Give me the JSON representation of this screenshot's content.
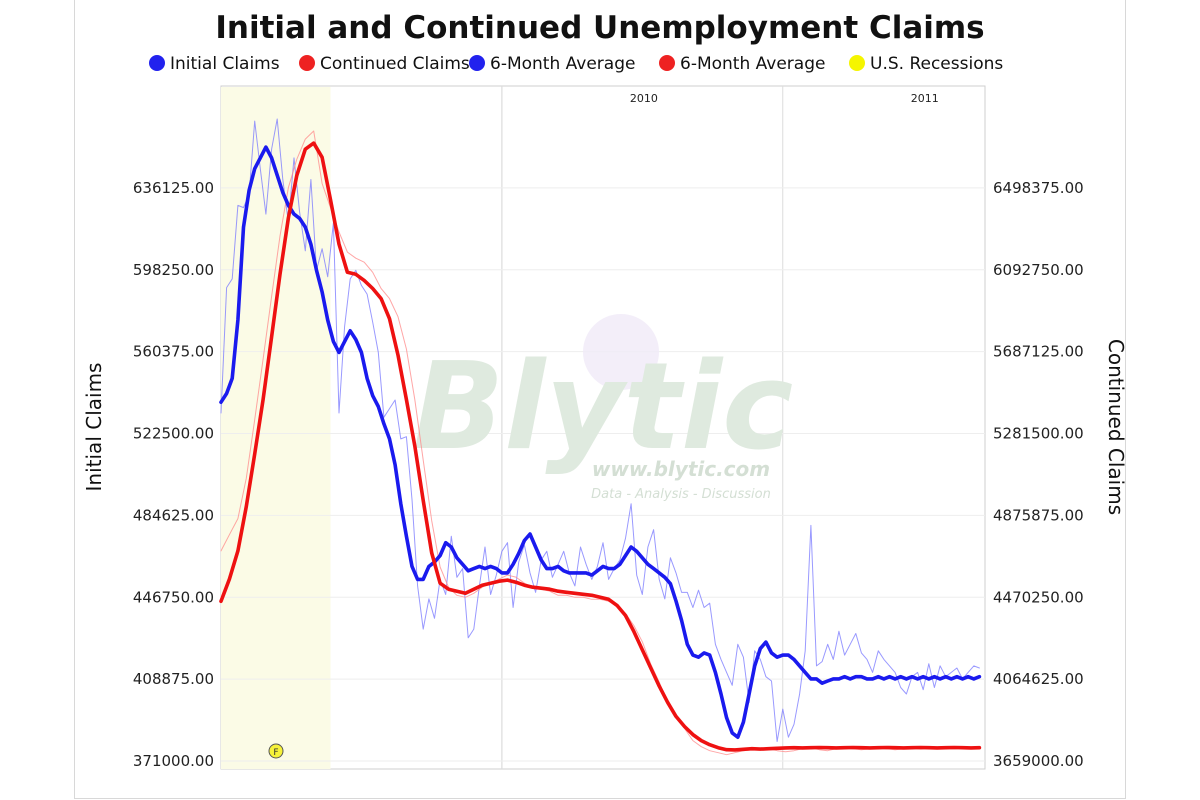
{
  "chart_data": {
    "type": "line",
    "title": "Initial and Continued Unemployment Claims",
    "ylabel_left": "Initial Claims",
    "ylabel_right": "Continued Claims",
    "y_left_ticks": [
      "636125.00",
      "598250.00",
      "560375.00",
      "522500.00",
      "484625.00",
      "446750.00",
      "408875.00",
      "371000.00"
    ],
    "y_right_ticks": [
      "6498375.00",
      "6092750.00",
      "5687125.00",
      "5281500.00",
      "4875875.00",
      "4470250.00",
      "4064625.00",
      "3659000.00"
    ],
    "y_left_range": [
      371000,
      674000
    ],
    "y_right_range": [
      3659000,
      6904000
    ],
    "x_range": [
      2009.0,
      2011.72
    ],
    "year_labels": [
      {
        "label": "2010",
        "x": 2010.0
      },
      {
        "label": "2011",
        "x": 2011.0
      }
    ],
    "recession": {
      "label": "U.S. Recessions",
      "start": 2009.0,
      "end": 2009.39
    },
    "legend": [
      {
        "label": "Initial Claims",
        "color": "#2222ee"
      },
      {
        "label": "Continued Claims",
        "color": "#ee2222"
      },
      {
        "label": "6-Month Average",
        "color": "#2222ee"
      },
      {
        "label": "6-Month Average",
        "color": "#ee2222"
      },
      {
        "label": "U.S. Recessions",
        "color": "#f5f500"
      }
    ],
    "series": [
      {
        "name": "Initial Claims",
        "axis": "left",
        "color": "#7777ff",
        "width": 1,
        "x": [
          2009.0,
          2009.02,
          2009.04,
          2009.06,
          2009.08,
          2009.1,
          2009.12,
          2009.14,
          2009.16,
          2009.18,
          2009.2,
          2009.22,
          2009.24,
          2009.26,
          2009.28,
          2009.3,
          2009.32,
          2009.34,
          2009.36,
          2009.38,
          2009.4,
          2009.42,
          2009.44,
          2009.46,
          2009.48,
          2009.5,
          2009.52,
          2009.54,
          2009.56,
          2009.58,
          2009.6,
          2009.62,
          2009.64,
          2009.66,
          2009.68,
          2009.7,
          2009.72,
          2009.74,
          2009.76,
          2009.78,
          2009.8,
          2009.82,
          2009.84,
          2009.86,
          2009.88,
          2009.9,
          2009.92,
          2009.94,
          2009.96,
          2009.98,
          2010.0,
          2010.02,
          2010.04,
          2010.06,
          2010.08,
          2010.1,
          2010.12,
          2010.14,
          2010.16,
          2010.18,
          2010.2,
          2010.22,
          2010.24,
          2010.26,
          2010.28,
          2010.3,
          2010.32,
          2010.34,
          2010.36,
          2010.38,
          2010.4,
          2010.42,
          2010.44,
          2010.46,
          2010.48,
          2010.5,
          2010.52,
          2010.54,
          2010.56,
          2010.58,
          2010.6,
          2010.62,
          2010.64,
          2010.66,
          2010.68,
          2010.7,
          2010.72,
          2010.74,
          2010.76,
          2010.78,
          2010.8,
          2010.82,
          2010.84,
          2010.86,
          2010.88,
          2010.9,
          2010.92,
          2010.94,
          2010.96,
          2010.98,
          2011.0,
          2011.02,
          2011.04,
          2011.06,
          2011.08,
          2011.1,
          2011.12,
          2011.14,
          2011.16,
          2011.18,
          2011.2,
          2011.22,
          2011.24,
          2011.26,
          2011.28,
          2011.3,
          2011.32,
          2011.34,
          2011.36,
          2011.38,
          2011.4,
          2011.42,
          2011.44,
          2011.46,
          2011.48,
          2011.5,
          2011.52,
          2011.54,
          2011.56,
          2011.58,
          2011.6,
          2011.62,
          2011.64,
          2011.66,
          2011.68,
          2011.7
        ],
        "values": [
          532000,
          590000,
          594000,
          628000,
          627000,
          633000,
          667000,
          645000,
          624000,
          654000,
          668000,
          640000,
          620000,
          650000,
          625000,
          607000,
          640000,
          598000,
          608000,
          595000,
          620000,
          532000,
          572000,
          594000,
          598000,
          591000,
          587000,
          574000,
          560000,
          530000,
          534000,
          538000,
          520000,
          521000,
          492000,
          452000,
          432000,
          446000,
          437000,
          455000,
          448000,
          475000,
          456000,
          460000,
          428000,
          432000,
          452000,
          470000,
          448000,
          457000,
          468000,
          472000,
          442000,
          463000,
          471000,
          458000,
          449000,
          464000,
          468000,
          456000,
          462000,
          468000,
          458000,
          452000,
          470000,
          462000,
          455000,
          461000,
          472000,
          455000,
          460000,
          464000,
          474000,
          490000,
          457000,
          448000,
          470000,
          478000,
          455000,
          446000,
          465000,
          458000,
          449000,
          449000,
          442000,
          450000,
          442000,
          444000,
          425000,
          418000,
          412000,
          406000,
          425000,
          419000,
          398000,
          422000,
          418000,
          410000,
          408000,
          380000,
          395000,
          382000,
          388000,
          402000,
          422000,
          480000,
          415000,
          417000,
          425000,
          418000,
          431000,
          420000,
          425000,
          430000,
          421000,
          418000,
          412000,
          422000,
          418000,
          415000,
          412000,
          405000,
          402000,
          410000,
          412000,
          404000,
          416000,
          405000,
          415000,
          410000,
          412000,
          414000,
          409000,
          412000,
          415000,
          414000
        ],
        "keep_fine": true
      },
      {
        "name": "Continued Claims",
        "axis": "right",
        "color": "#ff8888",
        "width": 1,
        "x": [
          2009.0,
          2009.03,
          2009.06,
          2009.09,
          2009.12,
          2009.15,
          2009.18,
          2009.21,
          2009.24,
          2009.27,
          2009.3,
          2009.33,
          2009.36,
          2009.39,
          2009.42,
          2009.45,
          2009.48,
          2009.51,
          2009.54,
          2009.57,
          2009.6,
          2009.63,
          2009.66,
          2009.69,
          2009.72,
          2009.75,
          2009.78,
          2009.81,
          2009.84,
          2009.87,
          2009.9,
          2009.93,
          2009.96,
          2009.99,
          2010.02,
          2010.05,
          2010.08,
          2010.11,
          2010.14,
          2010.17,
          2010.2,
          2010.23,
          2010.26,
          2010.29,
          2010.32,
          2010.35,
          2010.38,
          2010.41,
          2010.44,
          2010.47,
          2010.5,
          2010.53,
          2010.56,
          2010.59,
          2010.62,
          2010.65,
          2010.68,
          2010.71,
          2010.74,
          2010.77,
          2010.8,
          2010.83,
          2010.86,
          2010.89,
          2010.92,
          2010.95,
          2010.98,
          2011.01,
          2011.04,
          2011.07,
          2011.1,
          2011.13,
          2011.16,
          2011.19,
          2011.22,
          2011.25,
          2011.28,
          2011.31,
          2011.34,
          2011.37,
          2011.4,
          2011.43,
          2011.46,
          2011.49,
          2011.52,
          2011.55,
          2011.58,
          2011.61,
          2011.64,
          2011.67,
          2011.7
        ],
        "values": [
          4700000,
          4780000,
          4860000,
          5060000,
          5350000,
          5650000,
          5960000,
          6260000,
          6500000,
          6640000,
          6740000,
          6780000,
          6520000,
          6400000,
          6280000,
          6180000,
          6150000,
          6130000,
          6080000,
          6000000,
          5950000,
          5860000,
          5700000,
          5450000,
          5150000,
          4850000,
          4620000,
          4520000,
          4480000,
          4470000,
          4490000,
          4520000,
          4540000,
          4560000,
          4580000,
          4570000,
          4540000,
          4520000,
          4510000,
          4500000,
          4480000,
          4480000,
          4470000,
          4470000,
          4460000,
          4460000,
          4450000,
          4430000,
          4390000,
          4330000,
          4250000,
          4140000,
          4050000,
          3950000,
          3880000,
          3820000,
          3760000,
          3730000,
          3710000,
          3700000,
          3690000,
          3700000,
          3710000,
          3715000,
          3720000,
          3720000,
          3710000,
          3705000,
          3710000,
          3720000,
          3725000,
          3715000,
          3710000,
          3720000,
          3725000,
          3720000,
          3715000,
          3720000,
          3725000,
          3720000,
          3715000,
          3720000,
          3722000,
          3718000,
          3720000,
          3721000,
          3719000,
          3720000,
          3722000,
          3721000,
          3720000
        ]
      },
      {
        "name": "6-Month Average",
        "axis": "left",
        "color": "#1a1aee",
        "width": 3.6,
        "x": [
          2009.0,
          2009.02,
          2009.04,
          2009.06,
          2009.08,
          2009.1,
          2009.12,
          2009.14,
          2009.16,
          2009.18,
          2009.2,
          2009.22,
          2009.24,
          2009.26,
          2009.28,
          2009.3,
          2009.32,
          2009.34,
          2009.36,
          2009.38,
          2009.4,
          2009.42,
          2009.44,
          2009.46,
          2009.48,
          2009.5,
          2009.52,
          2009.54,
          2009.56,
          2009.58,
          2009.6,
          2009.62,
          2009.64,
          2009.66,
          2009.68,
          2009.7,
          2009.72,
          2009.74,
          2009.76,
          2009.78,
          2009.8,
          2009.82,
          2009.84,
          2009.86,
          2009.88,
          2009.9,
          2009.92,
          2009.94,
          2009.96,
          2009.98,
          2010.0,
          2010.02,
          2010.04,
          2010.06,
          2010.08,
          2010.1,
          2010.12,
          2010.14,
          2010.16,
          2010.18,
          2010.2,
          2010.22,
          2010.24,
          2010.26,
          2010.28,
          2010.3,
          2010.32,
          2010.34,
          2010.36,
          2010.38,
          2010.4,
          2010.42,
          2010.44,
          2010.46,
          2010.48,
          2010.5,
          2010.52,
          2010.54,
          2010.56,
          2010.58,
          2010.6,
          2010.62,
          2010.64,
          2010.66,
          2010.68,
          2010.7,
          2010.72,
          2010.74,
          2010.76,
          2010.78,
          2010.8,
          2010.82,
          2010.84,
          2010.86,
          2010.88,
          2010.9,
          2010.92,
          2010.94,
          2010.96,
          2010.98,
          2011.0,
          2011.02,
          2011.04,
          2011.06,
          2011.08,
          2011.1,
          2011.12,
          2011.14,
          2011.16,
          2011.18,
          2011.2,
          2011.22,
          2011.24,
          2011.26,
          2011.28,
          2011.3,
          2011.32,
          2011.34,
          2011.36,
          2011.38,
          2011.4,
          2011.42,
          2011.44,
          2011.46,
          2011.48,
          2011.5,
          2011.52,
          2011.54,
          2011.56,
          2011.58,
          2011.6,
          2011.62,
          2011.64,
          2011.66,
          2011.68,
          2011.7
        ],
        "values": [
          537000,
          541000,
          548000,
          575000,
          618000,
          635000,
          645000,
          650000,
          655000,
          650000,
          642000,
          634000,
          628000,
          624000,
          622000,
          618000,
          610000,
          598000,
          588000,
          575000,
          565000,
          560000,
          565000,
          570000,
          566000,
          560000,
          548000,
          540000,
          535000,
          527000,
          520000,
          508000,
          490000,
          475000,
          461000,
          455000,
          455000,
          461000,
          463000,
          466000,
          472000,
          470000,
          465000,
          462000,
          459000,
          460000,
          461000,
          460000,
          461000,
          460000,
          458000,
          458000,
          462000,
          467000,
          473000,
          476000,
          470000,
          464000,
          460000,
          460000,
          461000,
          459000,
          458000,
          458000,
          458000,
          458000,
          457000,
          459000,
          461000,
          460000,
          460000,
          462000,
          466000,
          470000,
          468000,
          465000,
          462000,
          460000,
          458000,
          456000,
          453000,
          445000,
          436000,
          425000,
          420000,
          419000,
          421000,
          420000,
          412000,
          402000,
          391000,
          384000,
          382000,
          389000,
          402000,
          415000,
          423000,
          426000,
          421000,
          419000,
          420000,
          420000,
          418000,
          415000,
          412000,
          409000,
          409000,
          407000,
          408000,
          409000,
          409000,
          410000,
          409000,
          410000,
          410000,
          409000,
          409000,
          410000,
          409000,
          410000,
          409000,
          410000,
          409000,
          410000,
          409000,
          410000,
          409000,
          410000,
          409000,
          410000,
          409000,
          410000,
          409000,
          410000,
          409000,
          410000
        ],
        "keep_fine": true
      },
      {
        "name": "6-Month Average",
        "axis": "right",
        "color": "#ee1111",
        "width": 3.6,
        "x": [
          2009.0,
          2009.03,
          2009.06,
          2009.09,
          2009.12,
          2009.15,
          2009.18,
          2009.21,
          2009.24,
          2009.27,
          2009.3,
          2009.33,
          2009.36,
          2009.39,
          2009.42,
          2009.45,
          2009.48,
          2009.51,
          2009.54,
          2009.57,
          2009.6,
          2009.63,
          2009.66,
          2009.69,
          2009.72,
          2009.75,
          2009.78,
          2009.81,
          2009.84,
          2009.87,
          2009.9,
          2009.93,
          2009.96,
          2009.99,
          2010.02,
          2010.05,
          2010.08,
          2010.11,
          2010.14,
          2010.17,
          2010.2,
          2010.23,
          2010.26,
          2010.29,
          2010.32,
          2010.35,
          2010.38,
          2010.41,
          2010.44,
          2010.47,
          2010.5,
          2010.53,
          2010.56,
          2010.59,
          2010.62,
          2010.65,
          2010.68,
          2010.71,
          2010.74,
          2010.77,
          2010.8,
          2010.83,
          2010.86,
          2010.89,
          2010.92,
          2010.95,
          2010.98,
          2011.01,
          2011.04,
          2011.07,
          2011.1,
          2011.13,
          2011.16,
          2011.19,
          2011.22,
          2011.25,
          2011.28,
          2011.31,
          2011.34,
          2011.37,
          2011.4,
          2011.43,
          2011.46,
          2011.49,
          2011.52,
          2011.55,
          2011.58,
          2011.61,
          2011.64,
          2011.67,
          2011.7
        ],
        "values": [
          4450000,
          4560000,
          4700000,
          4920000,
          5180000,
          5450000,
          5760000,
          6070000,
          6350000,
          6560000,
          6690000,
          6720000,
          6650000,
          6440000,
          6220000,
          6080000,
          6070000,
          6040000,
          6000000,
          5950000,
          5850000,
          5670000,
          5450000,
          5220000,
          4950000,
          4690000,
          4540000,
          4510000,
          4500000,
          4490000,
          4510000,
          4530000,
          4540000,
          4550000,
          4555000,
          4545000,
          4530000,
          4520000,
          4515000,
          4510000,
          4500000,
          4495000,
          4490000,
          4485000,
          4480000,
          4470000,
          4460000,
          4430000,
          4380000,
          4300000,
          4210000,
          4120000,
          4030000,
          3950000,
          3880000,
          3830000,
          3790000,
          3760000,
          3740000,
          3725000,
          3715000,
          3714000,
          3717000,
          3720000,
          3718000,
          3720000,
          3722000,
          3724000,
          3725000,
          3724000,
          3725000,
          3726000,
          3725000,
          3724000,
          3725000,
          3726000,
          3725000,
          3724000,
          3725000,
          3726000,
          3725000,
          3724000,
          3725000,
          3726000,
          3725000,
          3724000,
          3725000,
          3726000,
          3725000,
          3724000,
          3725000
        ]
      }
    ],
    "grid": true,
    "legend_placement": "top"
  },
  "watermark": {
    "brand": "Blytic",
    "url": "www.blytic.com",
    "tagline": "Data - Analysis - Discussion"
  }
}
